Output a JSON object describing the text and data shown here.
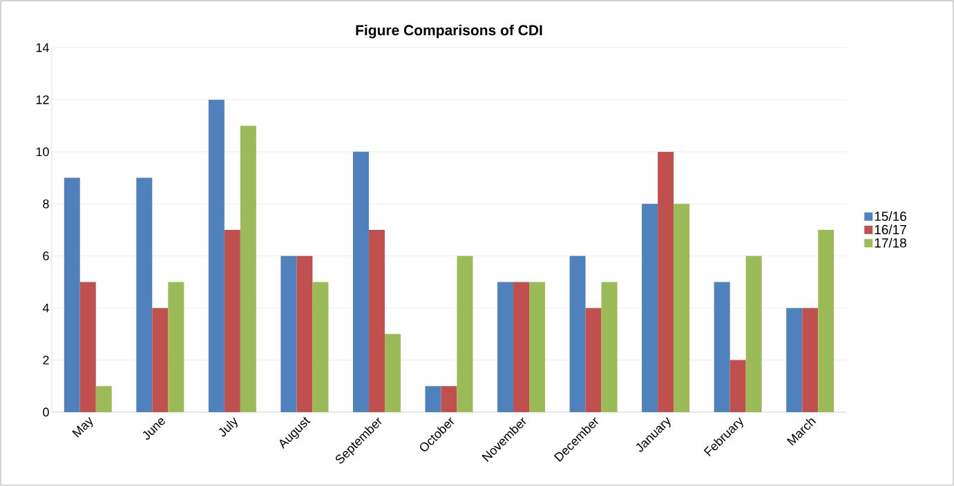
{
  "chart_data": {
    "type": "bar",
    "title": "Figure Comparisons of CDI",
    "categories": [
      "May",
      "June",
      "July",
      "August",
      "September",
      "October",
      "November",
      "December",
      "January",
      "February",
      "March"
    ],
    "series": [
      {
        "name": "15/16",
        "color": "#4f81bd",
        "values": [
          9,
          9,
          12,
          6,
          10,
          1,
          5,
          6,
          8,
          5,
          4
        ]
      },
      {
        "name": "16/17",
        "color": "#c0504d",
        "values": [
          5,
          4,
          7,
          6,
          7,
          1,
          5,
          4,
          10,
          2,
          4
        ]
      },
      {
        "name": "17/18",
        "color": "#9bbb59",
        "values": [
          1,
          5,
          11,
          5,
          3,
          6,
          5,
          5,
          8,
          6,
          7
        ]
      }
    ],
    "ylim": [
      0,
      14
    ],
    "yticks": [
      0,
      2,
      4,
      6,
      8,
      10,
      12,
      14
    ],
    "grid": "y",
    "legend": "right"
  }
}
